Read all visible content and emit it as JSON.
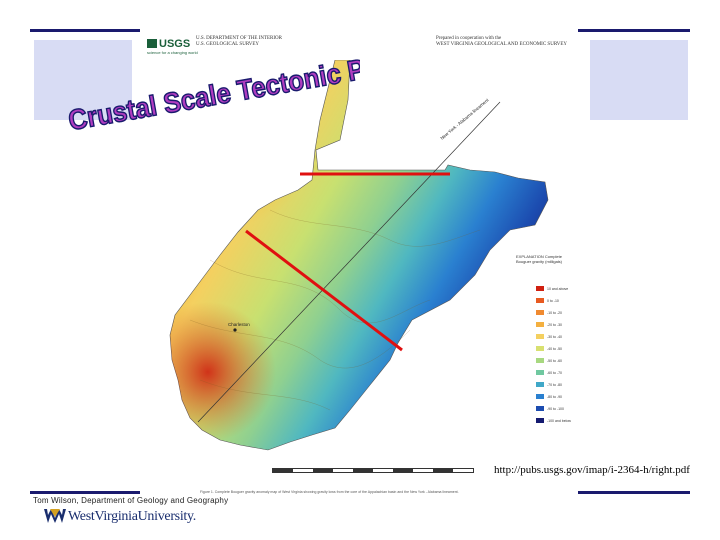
{
  "header": {
    "agency_line1": "U.S. DEPARTMENT OF THE INTERIOR",
    "agency_line2": "U.S. GEOLOGICAL SURVEY",
    "logo_text": "USGS",
    "logo_sub": "science for a changing world",
    "report_line1": "Prepared in cooperation with the",
    "report_line2": "WEST VIRGINIA GEOLOGICAL AND ECONOMIC SURVEY"
  },
  "slide": {
    "title": "Crustal Scale Tectonic Problems",
    "url": "http://pubs.usgs.gov/imap/i-2364-h/right.pdf",
    "author": "Tom Wilson, Department of Geology and Geography",
    "university": "WestVirginiaUniversity."
  },
  "map": {
    "diagonal_label": "New York - Alabama lineament",
    "city_charleston": "Charleston",
    "legend_title": "EXPLANATION Complete Bouguer gravity (milligals)",
    "legend_items": [
      "10 and above",
      "0 to -10",
      "-10 to -20",
      "-20 to -30",
      "-30 to -40",
      "-40 to -50",
      "-50 to -60",
      "-60 to -70",
      "-70 to -80",
      "-80 to -90",
      "-90 to -100",
      "-100 and below"
    ],
    "figure_caption": "Figure 1. Complete Bouguer gravity anomaly map of West Virginia showing gravity lows from the core of the Appalachian basin and the New York - Alabama lineament."
  },
  "colors": {
    "accent": "#1a1a6e",
    "title_fill": "#b03cc0",
    "title_outline": "#1a1a6e",
    "red_line": "#e01010"
  }
}
